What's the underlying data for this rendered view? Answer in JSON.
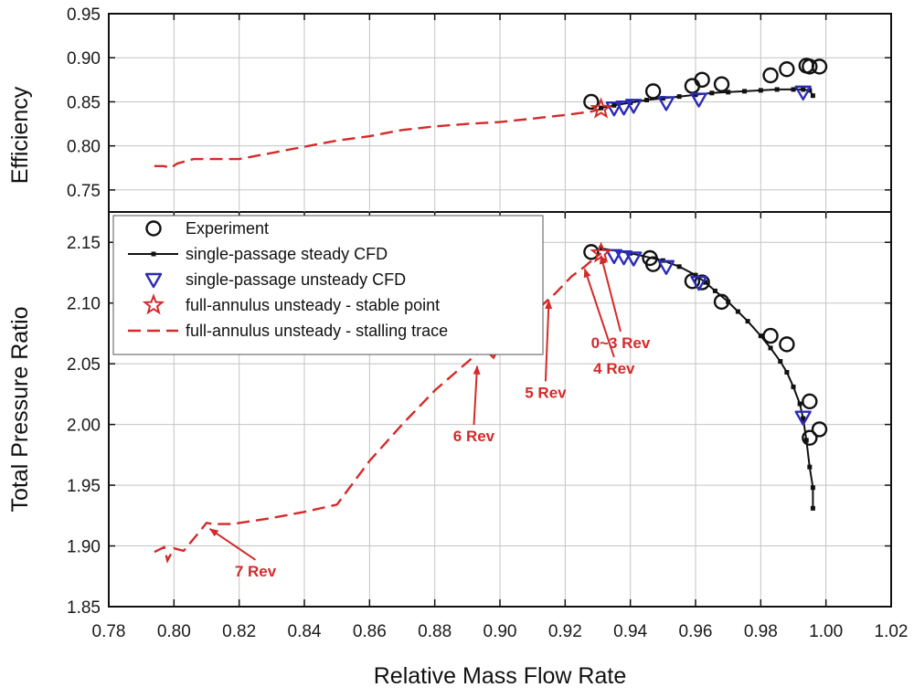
{
  "chart_data": {
    "type": "scatter",
    "xlabel": "Relative Mass Flow Rate",
    "xlim": [
      0.78,
      1.02
    ],
    "xticks": [
      "0.78",
      "0.80",
      "0.82",
      "0.84",
      "0.86",
      "0.88",
      "0.90",
      "0.92",
      "0.94",
      "0.96",
      "0.98",
      "1.00",
      "1.02"
    ],
    "grid": true,
    "colors": {
      "experiment": "#111111",
      "steady": "#111111",
      "unsteady": "#2b2bb8",
      "stable_point": "#d42a2a",
      "stalling": "#d42a2a",
      "annotation": "#d42a2a"
    },
    "legend": {
      "placement": "top-left of lower panel",
      "entries": [
        {
          "key": "experiment",
          "label": "Experiment"
        },
        {
          "key": "steady",
          "label": "single-passage steady CFD"
        },
        {
          "key": "unsteady",
          "label": "single-passage unsteady CFD"
        },
        {
          "key": "stable_point",
          "label": "full-annulus unsteady - stable point"
        },
        {
          "key": "stalling",
          "label": "full-annulus unsteady - stalling trace"
        }
      ]
    },
    "panels": [
      {
        "key": "efficiency",
        "ylabel": "Efficiency",
        "ylim": [
          0.725,
          0.95
        ],
        "yticks": [
          "0.75",
          "0.80",
          "0.85",
          "0.90",
          "0.95"
        ],
        "series": [
          {
            "key": "experiment",
            "x": [
              0.928,
              0.947,
              0.959,
              0.962,
              0.968,
              0.983,
              0.988,
              0.994,
              0.995,
              0.998
            ],
            "y": [
              0.85,
              0.862,
              0.868,
              0.875,
              0.87,
              0.88,
              0.887,
              0.891,
              0.89,
              0.89
            ]
          },
          {
            "key": "steady",
            "x": [
              0.931,
              0.935,
              0.94,
              0.945,
              0.95,
              0.955,
              0.96,
              0.965,
              0.97,
              0.975,
              0.98,
              0.985,
              0.99,
              0.993,
              0.995,
              0.996
            ],
            "y": [
              0.843,
              0.846,
              0.849,
              0.852,
              0.854,
              0.856,
              0.858,
              0.86,
              0.861,
              0.862,
              0.863,
              0.864,
              0.864,
              0.864,
              0.863,
              0.857
            ]
          },
          {
            "key": "unsteady",
            "x": [
              0.935,
              0.938,
              0.941,
              0.951,
              0.961,
              0.993
            ],
            "y": [
              0.843,
              0.844,
              0.846,
              0.849,
              0.853,
              0.861
            ]
          },
          {
            "key": "stable_point",
            "x": [
              0.931
            ],
            "y": [
              0.842
            ]
          },
          {
            "key": "stalling",
            "x": [
              0.794,
              0.797,
              0.799,
              0.801,
              0.806,
              0.812,
              0.82,
              0.83,
              0.84,
              0.85,
              0.86,
              0.87,
              0.88,
              0.89,
              0.9,
              0.91,
              0.92,
              0.928,
              0.931
            ],
            "y": [
              0.777,
              0.777,
              0.775,
              0.78,
              0.785,
              0.785,
              0.785,
              0.792,
              0.799,
              0.806,
              0.811,
              0.818,
              0.822,
              0.825,
              0.827,
              0.831,
              0.835,
              0.839,
              0.842
            ]
          }
        ]
      },
      {
        "key": "pressure",
        "ylabel": "Total Pressure Ratio",
        "ylim": [
          1.85,
          2.175
        ],
        "yticks": [
          "1.85",
          "1.90",
          "1.95",
          "2.00",
          "2.05",
          "2.10",
          "2.15"
        ],
        "series": [
          {
            "key": "experiment",
            "x": [
              0.928,
              0.946,
              0.947,
              0.959,
              0.962,
              0.968,
              0.983,
              0.988,
              0.995,
              0.995,
              0.998
            ],
            "y": [
              2.142,
              2.137,
              2.132,
              2.118,
              2.117,
              2.101,
              2.073,
              2.066,
              2.019,
              1.989,
              1.996
            ]
          },
          {
            "key": "steady",
            "x": [
              0.931,
              0.94,
              0.95,
              0.955,
              0.96,
              0.963,
              0.966,
              0.97,
              0.973,
              0.976,
              0.98,
              0.983,
              0.986,
              0.988,
              0.99,
              0.992,
              0.993,
              0.994,
              0.995,
              0.996,
              0.996
            ],
            "y": [
              2.145,
              2.141,
              2.135,
              2.13,
              2.123,
              2.117,
              2.11,
              2.101,
              2.093,
              2.085,
              2.073,
              2.063,
              2.052,
              2.043,
              2.031,
              2.017,
              2.005,
              1.987,
              1.965,
              1.948,
              1.931
            ]
          },
          {
            "key": "unsteady",
            "x": [
              0.935,
              0.938,
              0.941,
              0.951,
              0.961,
              0.993
            ],
            "y": [
              2.139,
              2.138,
              2.137,
              2.13,
              2.117,
              2.006
            ]
          },
          {
            "key": "stable_point",
            "x": [
              0.931
            ],
            "y": [
              2.141
            ]
          },
          {
            "key": "stalling",
            "x": [
              0.794,
              0.797,
              0.798,
              0.8,
              0.803,
              0.807,
              0.81,
              0.812,
              0.818,
              0.83,
              0.84,
              0.85,
              0.86,
              0.87,
              0.88,
              0.895,
              0.898,
              0.902,
              0.906,
              0.912,
              0.917,
              0.922,
              0.926,
              0.929,
              0.931
            ],
            "y": [
              1.895,
              1.899,
              1.888,
              1.898,
              1.896,
              1.909,
              1.919,
              1.918,
              1.918,
              1.923,
              1.928,
              1.934,
              1.97,
              2.0,
              2.028,
              2.063,
              2.055,
              2.075,
              2.092,
              2.096,
              2.108,
              2.122,
              2.13,
              2.137,
              2.141
            ]
          }
        ],
        "annotations": [
          {
            "text": "0~3 Rev",
            "label_x": 0.937,
            "label_y": 2.063,
            "arrow_to": [
              0.931,
              2.139
            ]
          },
          {
            "text": "4 Rev",
            "label_x": 0.935,
            "label_y": 2.042,
            "arrow_to": [
              0.926,
              2.128
            ]
          },
          {
            "text": "5 Rev",
            "label_x": 0.914,
            "label_y": 2.022,
            "arrow_to": [
              0.915,
              2.102
            ]
          },
          {
            "text": "6 Rev",
            "label_x": 0.892,
            "label_y": 1.986,
            "arrow_to": [
              0.893,
              2.048
            ]
          },
          {
            "text": "7 Rev",
            "label_x": 0.825,
            "label_y": 1.875,
            "arrow_to": [
              0.811,
              1.914
            ]
          }
        ]
      }
    ]
  }
}
